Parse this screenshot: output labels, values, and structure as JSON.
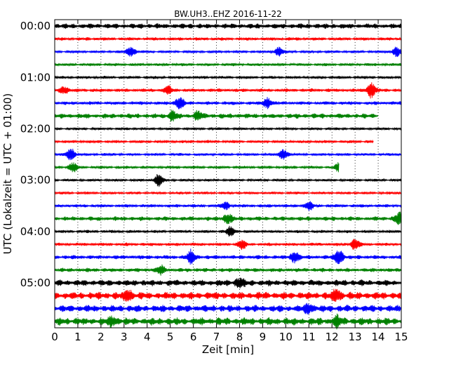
{
  "chart_data": {
    "type": "line",
    "title": "BW.UH3..EHZ 2016-11-22",
    "xlabel": "Zeit  [min]",
    "ylabel": "UTC (Lokalzeit = UTC + 01:00)",
    "xlim": [
      0,
      15
    ],
    "x_ticks": [
      "0",
      "1",
      "2",
      "3",
      "4",
      "5",
      "6",
      "7",
      "8",
      "9",
      "10",
      "11",
      "12",
      "13",
      "14",
      "15"
    ],
    "y_ticks": [
      "00:00",
      "01:00",
      "02:00",
      "03:00",
      "04:00",
      "05:00"
    ],
    "grid": "vertical dotted",
    "trace_interval_min": 15,
    "trace_colors": [
      "#000000",
      "#ff0000",
      "#0000ff",
      "#008000"
    ],
    "trace_end_min": [
      15,
      15,
      15,
      15,
      15,
      15,
      15,
      14.0,
      15,
      13.8,
      15,
      12.3,
      15,
      15,
      15,
      15,
      15,
      15,
      15,
      15,
      15,
      15,
      15,
      15
    ],
    "trace_amplitude": [
      0.9,
      0.55,
      0.45,
      0.5,
      0.5,
      0.6,
      0.6,
      0.85,
      0.45,
      0.5,
      0.45,
      0.5,
      0.45,
      0.45,
      0.55,
      0.75,
      0.5,
      0.55,
      0.7,
      0.7,
      1.1,
      1.3,
      1.2,
      1.3
    ],
    "events": [
      {
        "trace": 2,
        "min": 3.3,
        "amp": 2.2
      },
      {
        "trace": 2,
        "min": 9.7,
        "amp": 1.8
      },
      {
        "trace": 2,
        "min": 14.8,
        "amp": 2.0
      },
      {
        "trace": 5,
        "min": 0.4,
        "amp": 1.6
      },
      {
        "trace": 5,
        "min": 4.9,
        "amp": 1.8
      },
      {
        "trace": 5,
        "min": 13.7,
        "amp": 3.2
      },
      {
        "trace": 6,
        "min": 5.4,
        "amp": 2.6
      },
      {
        "trace": 6,
        "min": 9.2,
        "amp": 2.2
      },
      {
        "trace": 7,
        "min": 5.1,
        "amp": 2.0
      },
      {
        "trace": 7,
        "min": 6.2,
        "amp": 1.8
      },
      {
        "trace": 10,
        "min": 0.7,
        "amp": 2.8
      },
      {
        "trace": 10,
        "min": 9.9,
        "amp": 2.2
      },
      {
        "trace": 11,
        "min": 0.8,
        "amp": 2.0
      },
      {
        "trace": 11,
        "min": 12.3,
        "amp": 1.8
      },
      {
        "trace": 12,
        "min": 4.5,
        "amp": 2.6
      },
      {
        "trace": 14,
        "min": 7.4,
        "amp": 1.6
      },
      {
        "trace": 14,
        "min": 11.0,
        "amp": 1.8
      },
      {
        "trace": 15,
        "min": 7.5,
        "amp": 2.0
      },
      {
        "trace": 15,
        "min": 14.9,
        "amp": 2.4
      },
      {
        "trace": 16,
        "min": 7.6,
        "amp": 2.0
      },
      {
        "trace": 17,
        "min": 8.1,
        "amp": 2.0
      },
      {
        "trace": 17,
        "min": 13.0,
        "amp": 2.4
      },
      {
        "trace": 18,
        "min": 5.9,
        "amp": 2.8
      },
      {
        "trace": 18,
        "min": 10.4,
        "amp": 2.6
      },
      {
        "trace": 18,
        "min": 12.3,
        "amp": 3.4
      },
      {
        "trace": 19,
        "min": 4.6,
        "amp": 1.8
      },
      {
        "trace": 20,
        "min": 8.0,
        "amp": 1.8
      },
      {
        "trace": 21,
        "min": 3.2,
        "amp": 2.2
      },
      {
        "trace": 21,
        "min": 12.2,
        "amp": 2.4
      },
      {
        "trace": 22,
        "min": 11.0,
        "amp": 1.8
      },
      {
        "trace": 23,
        "min": 2.5,
        "amp": 1.6
      },
      {
        "trace": 23,
        "min": 12.2,
        "amp": 1.8
      }
    ]
  }
}
